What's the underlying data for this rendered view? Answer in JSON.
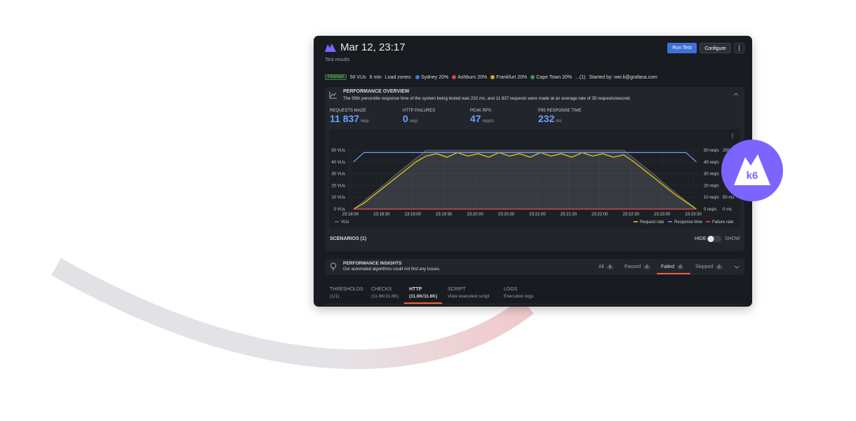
{
  "header": {
    "title": "Mar 12, 23:17",
    "subtitle": "Test results",
    "buttons": [
      "Run Test",
      "Configure"
    ]
  },
  "status": {
    "badge": "Finished",
    "vus": "50 VUs",
    "duration": "6 min",
    "load_zones_label": "Load zones:",
    "zones": [
      "Sydney 20%",
      "Ashburn 20%",
      "Frankfurt 20%",
      "Cape Town 20%",
      "...(1)"
    ],
    "started_by": "Started by: wei.li@grafana.com"
  },
  "overview": {
    "title": "PERFORMANCE OVERVIEW",
    "description": "The 95th percentile response time of the system being tested was 232 ms, and 11 837 requests were made at an average rate of 35 requests/second.",
    "metrics": [
      {
        "label": "REQUESTS MADE",
        "value": "11 837",
        "unit": "reqs"
      },
      {
        "label": "HTTP FAILURES",
        "value": "0",
        "unit": "reqs"
      },
      {
        "label": "PEAK RPS",
        "value": "47",
        "unit": "reqs/s"
      },
      {
        "label": "P95 RESPONSE TIME",
        "value": "232",
        "unit": "ms"
      }
    ]
  },
  "chart_data": {
    "type": "line",
    "x": [
      "23:18:03",
      "23:18:13",
      "23:18:23",
      "23:18:33",
      "23:18:43",
      "23:18:53",
      "23:19:03",
      "23:19:13",
      "23:19:23",
      "23:19:33",
      "23:19:43",
      "23:19:53",
      "23:20:03",
      "23:20:13",
      "23:20:23",
      "23:20:33",
      "23:20:43",
      "23:20:53",
      "23:21:03",
      "23:21:13",
      "23:21:23",
      "23:21:33",
      "23:21:43",
      "23:21:53",
      "23:22:03",
      "23:22:13",
      "23:22:23",
      "23:22:33",
      "23:22:43",
      "23:22:53",
      "23:23:03",
      "23:23:13",
      "23:23:23",
      "23:23:33"
    ],
    "xlim": [
      "23:17:57",
      "23:23:36"
    ],
    "xticks": [
      "23:18:00",
      "23:18:30",
      "23:19:00",
      "23:19:30",
      "23:20:00",
      "23:20:30",
      "23:21:00",
      "23:21:30",
      "23:22:00",
      "23:22:30",
      "23:23:00",
      "23:23:30"
    ],
    "ylim": [
      0,
      50
    ],
    "yticks": [
      {
        "value": 0,
        "label": "0 VUs"
      },
      {
        "value": 10,
        "label": "10 VUs"
      },
      {
        "value": 20,
        "label": "20 VUs"
      },
      {
        "value": 30,
        "label": "30 VUs"
      },
      {
        "value": 40,
        "label": "40 VUs"
      },
      {
        "value": 50,
        "label": "50 VUs"
      }
    ],
    "y2lim": [
      0,
      50
    ],
    "y2ticks": [
      {
        "value": 0,
        "label": "0 req/s"
      },
      {
        "value": 10,
        "label": "10 req/s"
      },
      {
        "value": 20,
        "label": "20 req/s"
      },
      {
        "value": 30,
        "label": "30 req/s"
      },
      {
        "value": 40,
        "label": "40 req/s"
      },
      {
        "value": 50,
        "label": "50 req/s"
      }
    ],
    "y3lim": [
      0,
      250
    ],
    "y3ticks": [
      {
        "value": 0,
        "label": "0 ms"
      },
      {
        "value": 50,
        "label": "50 ms"
      },
      {
        "value": 250,
        "label": "250 ms"
      }
    ],
    "grid": true,
    "series": [
      {
        "name": "VUs",
        "color": "#6b6f78",
        "axis": "y",
        "area": true,
        "values": [
          0,
          7,
          14,
          21,
          29,
          36,
          43,
          50,
          50,
          50,
          50,
          50,
          50,
          50,
          50,
          50,
          50,
          50,
          50,
          50,
          50,
          50,
          50,
          50,
          50,
          50,
          50,
          43,
          36,
          29,
          21,
          14,
          7,
          0
        ]
      },
      {
        "name": "Request rate",
        "color": "#f2cc0c",
        "axis": "y2",
        "values": [
          0,
          5,
          12,
          19,
          26,
          33,
          40,
          45,
          47,
          44,
          48,
          45,
          47,
          44,
          48,
          45,
          47,
          44,
          48,
          45,
          47,
          44,
          48,
          45,
          47,
          44,
          46,
          40,
          33,
          26,
          19,
          12,
          6,
          0
        ]
      },
      {
        "name": "Response time",
        "color": "#6e9fff",
        "axis": "y3",
        "values": [
          200,
          240,
          240,
          240,
          240,
          240,
          240,
          240,
          240,
          240,
          240,
          240,
          240,
          240,
          240,
          240,
          240,
          240,
          240,
          240,
          240,
          240,
          240,
          240,
          240,
          240,
          240,
          240,
          240,
          240,
          240,
          240,
          240,
          200
        ]
      },
      {
        "name": "Failure rate",
        "color": "#f2495c",
        "axis": "y2",
        "values": [
          0,
          0,
          0,
          0,
          0,
          0,
          0,
          0,
          0,
          0,
          0,
          0,
          0,
          0,
          0,
          0,
          0,
          0,
          0,
          0,
          0,
          0,
          0,
          0,
          0,
          0,
          0,
          0,
          0,
          0,
          0,
          0,
          0,
          0
        ]
      }
    ]
  },
  "scenarios": {
    "label": "SCENARIOS (1)",
    "hide": "HIDE",
    "show": "SHOW"
  },
  "insights": {
    "title": "PERFORMANCE INSIGHTS",
    "description": "Our automated algorithms could not find any issues.",
    "filters": [
      {
        "label": "All",
        "count": "0"
      },
      {
        "label": "Passed",
        "count": "0"
      },
      {
        "label": "Failed",
        "count": "0"
      },
      {
        "label": "Skipped",
        "count": "0"
      }
    ]
  },
  "tabs": [
    {
      "label": "THRESHOLDS",
      "detail": "(1/1)"
    },
    {
      "label": "CHECKS",
      "detail": "(11.6K/11.6K)"
    },
    {
      "label": "HTTP",
      "detail": "(11.6K/11.6K)"
    },
    {
      "label": "SCRIPT",
      "detail": "View executed script"
    },
    {
      "label": "LOGS",
      "detail": "Execution logs"
    }
  ],
  "badge": "k6"
}
